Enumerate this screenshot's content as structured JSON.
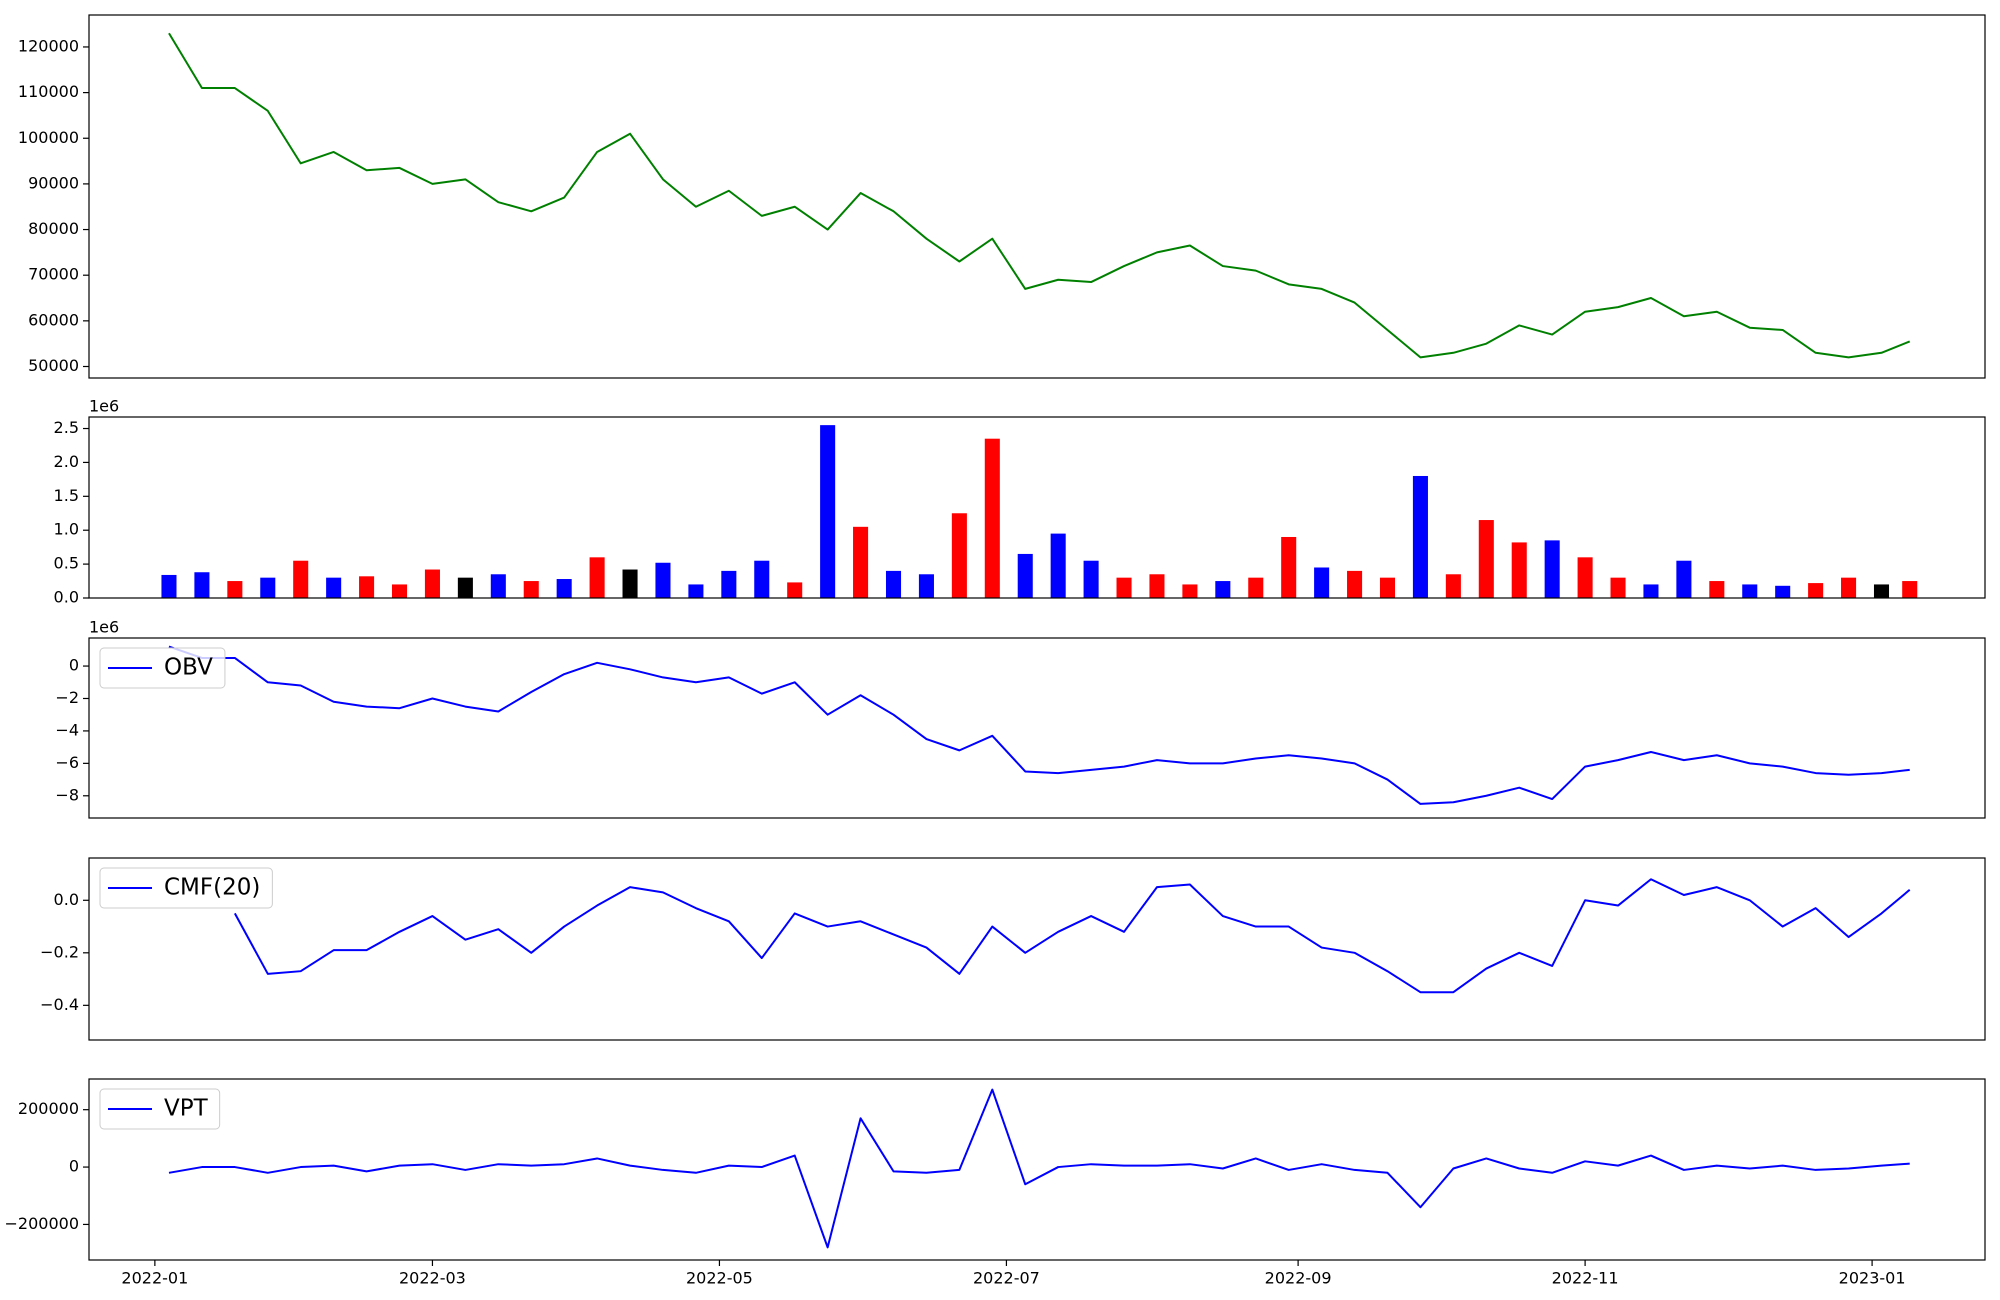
{
  "chart_data": [
    {
      "type": "line",
      "color": "#008000",
      "x": [
        "2022-01-04",
        "2022-01-11",
        "2022-01-18",
        "2022-01-25",
        "2022-02-01",
        "2022-02-08",
        "2022-02-15",
        "2022-02-22",
        "2022-03-01",
        "2022-03-08",
        "2022-03-15",
        "2022-03-22",
        "2022-03-29",
        "2022-04-05",
        "2022-04-12",
        "2022-04-19",
        "2022-04-26",
        "2022-05-03",
        "2022-05-10",
        "2022-05-17",
        "2022-05-24",
        "2022-05-31",
        "2022-06-07",
        "2022-06-14",
        "2022-06-21",
        "2022-06-28",
        "2022-07-05",
        "2022-07-12",
        "2022-07-19",
        "2022-07-26",
        "2022-08-02",
        "2022-08-09",
        "2022-08-16",
        "2022-08-23",
        "2022-08-30",
        "2022-09-06",
        "2022-09-13",
        "2022-09-20",
        "2022-09-27",
        "2022-10-04",
        "2022-10-11",
        "2022-10-18",
        "2022-10-25",
        "2022-11-01",
        "2022-11-08",
        "2022-11-15",
        "2022-11-22",
        "2022-11-29",
        "2022-12-06",
        "2022-12-13",
        "2022-12-20",
        "2022-12-27",
        "2023-01-03",
        "2023-01-09"
      ],
      "values": [
        123000,
        111000,
        111000,
        106000,
        94500,
        97000,
        93000,
        93500,
        90000,
        91000,
        86000,
        84000,
        87000,
        97000,
        101000,
        91000,
        85000,
        88500,
        83000,
        85000,
        80000,
        88000,
        84000,
        78000,
        73000,
        78000,
        67000,
        69000,
        68500,
        72000,
        75000,
        76500,
        72000,
        71000,
        68000,
        67000,
        64000,
        58000,
        52000,
        53000,
        55000,
        59000,
        57000,
        62000,
        63000,
        65000,
        61000,
        62000,
        58500,
        58000,
        53000,
        52000,
        53000,
        55500
      ],
      "xlim": [
        "2021-12-18",
        "2023-01-25"
      ],
      "ylim": [
        47480,
        127000
      ],
      "yticks": [
        50000,
        60000,
        70000,
        80000,
        90000,
        100000,
        110000,
        120000
      ]
    },
    {
      "type": "bar",
      "offset": "1e6",
      "x": [
        "2022-01-04",
        "2022-01-11",
        "2022-01-18",
        "2022-01-25",
        "2022-02-01",
        "2022-02-08",
        "2022-02-15",
        "2022-02-22",
        "2022-03-01",
        "2022-03-08",
        "2022-03-15",
        "2022-03-22",
        "2022-03-29",
        "2022-04-05",
        "2022-04-12",
        "2022-04-19",
        "2022-04-26",
        "2022-05-03",
        "2022-05-10",
        "2022-05-17",
        "2022-05-24",
        "2022-05-31",
        "2022-06-07",
        "2022-06-14",
        "2022-06-21",
        "2022-06-28",
        "2022-07-05",
        "2022-07-12",
        "2022-07-19",
        "2022-07-26",
        "2022-08-02",
        "2022-08-09",
        "2022-08-16",
        "2022-08-23",
        "2022-08-30",
        "2022-09-06",
        "2022-09-13",
        "2022-09-20",
        "2022-09-27",
        "2022-10-04",
        "2022-10-11",
        "2022-10-18",
        "2022-10-25",
        "2022-11-01",
        "2022-11-08",
        "2022-11-15",
        "2022-11-22",
        "2022-11-29",
        "2022-12-06",
        "2022-12-13",
        "2022-12-20",
        "2022-12-27",
        "2023-01-03",
        "2023-01-09"
      ],
      "values": [
        340000,
        380000,
        250000,
        300000,
        550000,
        300000,
        320000,
        200000,
        420000,
        300000,
        350000,
        250000,
        280000,
        600000,
        420000,
        520000,
        200000,
        400000,
        550000,
        230000,
        2550000,
        1050000,
        400000,
        350000,
        1250000,
        2350000,
        650000,
        950000,
        550000,
        300000,
        350000,
        200000,
        250000,
        300000,
        900000,
        450000,
        400000,
        300000,
        1800000,
        350000,
        1150000,
        820000,
        850000,
        600000,
        300000,
        200000,
        550000,
        250000,
        200000,
        180000,
        220000,
        300000,
        200000,
        250000
      ],
      "colors": [
        "blue",
        "blue",
        "red",
        "blue",
        "red",
        "blue",
        "red",
        "red",
        "red",
        "black",
        "blue",
        "red",
        "blue",
        "red",
        "black",
        "blue",
        "blue",
        "blue",
        "blue",
        "red",
        "blue",
        "red",
        "blue",
        "blue",
        "red",
        "red",
        "blue",
        "blue",
        "blue",
        "red",
        "red",
        "red",
        "blue",
        "red",
        "red",
        "blue",
        "red",
        "red",
        "blue",
        "red",
        "red",
        "red",
        "blue",
        "red",
        "red",
        "blue",
        "blue",
        "red",
        "blue",
        "blue",
        "red",
        "red",
        "black",
        "red"
      ],
      "xlim": [
        "2021-12-18",
        "2023-01-25"
      ],
      "ylim": [
        0,
        2670000
      ],
      "yticks": [
        {
          "value": 0,
          "label": "0.0"
        },
        {
          "value": 500000,
          "label": "0.5"
        },
        {
          "value": 1000000,
          "label": "1.0"
        },
        {
          "value": 1500000,
          "label": "1.5"
        },
        {
          "value": 2000000,
          "label": "2.0"
        },
        {
          "value": 2500000,
          "label": "2.5"
        }
      ]
    },
    {
      "type": "line",
      "offset": "1e6",
      "legend": "upper left",
      "x": [
        "2022-01-04",
        "2022-01-11",
        "2022-01-18",
        "2022-01-25",
        "2022-02-01",
        "2022-02-08",
        "2022-02-15",
        "2022-02-22",
        "2022-03-01",
        "2022-03-08",
        "2022-03-15",
        "2022-03-22",
        "2022-03-29",
        "2022-04-05",
        "2022-04-12",
        "2022-04-19",
        "2022-04-26",
        "2022-05-03",
        "2022-05-10",
        "2022-05-17",
        "2022-05-24",
        "2022-05-31",
        "2022-06-07",
        "2022-06-14",
        "2022-06-21",
        "2022-06-28",
        "2022-07-05",
        "2022-07-12",
        "2022-07-19",
        "2022-07-26",
        "2022-08-02",
        "2022-08-09",
        "2022-08-16",
        "2022-08-23",
        "2022-08-30",
        "2022-09-06",
        "2022-09-13",
        "2022-09-20",
        "2022-09-27",
        "2022-10-04",
        "2022-10-11",
        "2022-10-18",
        "2022-10-25",
        "2022-11-01",
        "2022-11-08",
        "2022-11-15",
        "2022-11-22",
        "2022-11-29",
        "2022-12-06",
        "2022-12-13",
        "2022-12-20",
        "2022-12-27",
        "2023-01-03",
        "2023-01-09"
      ],
      "series": [
        {
          "name": "OBV",
          "color": "#0000ff",
          "values": [
            1200000,
            500000,
            500000,
            -1000000,
            -1200000,
            -2200000,
            -2500000,
            -2600000,
            -2000000,
            -2500000,
            -2800000,
            -1600000,
            -500000,
            200000,
            -200000,
            -700000,
            -1000000,
            -700000,
            -1700000,
            -1000000,
            -3000000,
            -1800000,
            -3000000,
            -4500000,
            -5200000,
            -4300000,
            -6500000,
            -6600000,
            -6400000,
            -6200000,
            -5800000,
            -6000000,
            -6000000,
            -5700000,
            -5500000,
            -5700000,
            -6000000,
            -7000000,
            -8500000,
            -8400000,
            -8000000,
            -7500000,
            -8200000,
            -6200000,
            -5800000,
            -5300000,
            -5800000,
            -5500000,
            -6000000,
            -6200000,
            -6600000,
            -6700000,
            -6600000,
            -6400000
          ]
        }
      ],
      "xlim": [
        "2021-12-18",
        "2023-01-25"
      ],
      "ylim": [
        -9370000,
        1730000
      ],
      "yticks": [
        0,
        {
          "value": -2000000,
          "label": "−2"
        },
        {
          "value": -4000000,
          "label": "−4"
        },
        {
          "value": -6000000,
          "label": "−6"
        },
        {
          "value": -8000000,
          "label": "−8"
        }
      ]
    },
    {
      "type": "line",
      "legend": "upper left",
      "x": [
        "2022-01-04",
        "2022-01-11",
        "2022-01-18",
        "2022-01-25",
        "2022-02-01",
        "2022-02-08",
        "2022-02-15",
        "2022-02-22",
        "2022-03-01",
        "2022-03-08",
        "2022-03-15",
        "2022-03-22",
        "2022-03-29",
        "2022-04-05",
        "2022-04-12",
        "2022-04-19",
        "2022-04-26",
        "2022-05-03",
        "2022-05-10",
        "2022-05-17",
        "2022-05-24",
        "2022-05-31",
        "2022-06-07",
        "2022-06-14",
        "2022-06-21",
        "2022-06-28",
        "2022-07-05",
        "2022-07-12",
        "2022-07-19",
        "2022-07-26",
        "2022-08-02",
        "2022-08-09",
        "2022-08-16",
        "2022-08-23",
        "2022-08-30",
        "2022-09-06",
        "2022-09-13",
        "2022-09-20",
        "2022-09-27",
        "2022-10-04",
        "2022-10-11",
        "2022-10-18",
        "2022-10-25",
        "2022-11-01",
        "2022-11-08",
        "2022-11-15",
        "2022-11-22",
        "2022-11-29",
        "2022-12-06",
        "2022-12-13",
        "2022-12-20",
        "2022-12-27",
        "2023-01-03",
        "2023-01-09"
      ],
      "series": [
        {
          "name": "CMF(20)",
          "color": "#0000ff",
          "values": [
            null,
            null,
            -0.05,
            -0.28,
            -0.27,
            -0.19,
            -0.19,
            -0.12,
            -0.06,
            -0.15,
            -0.11,
            -0.2,
            -0.1,
            -0.02,
            0.05,
            0.03,
            -0.03,
            -0.08,
            -0.22,
            -0.05,
            -0.1,
            -0.08,
            -0.13,
            -0.18,
            -0.28,
            -0.1,
            -0.2,
            -0.12,
            -0.06,
            -0.12,
            0.05,
            0.06,
            -0.06,
            -0.1,
            -0.1,
            -0.18,
            -0.2,
            -0.27,
            -0.35,
            -0.35,
            -0.26,
            -0.2,
            -0.25,
            0.0,
            -0.02,
            0.08,
            0.02,
            0.05,
            0.0,
            -0.1,
            -0.03,
            -0.14,
            -0.05,
            0.04
          ]
        }
      ],
      "xlim": [
        "2021-12-18",
        "2023-01-25"
      ],
      "ylim": [
        -0.532,
        0.161
      ],
      "yticks": [
        {
          "value": 0,
          "label": "0.0"
        },
        {
          "value": -0.2,
          "label": "−0.2"
        },
        {
          "value": -0.4,
          "label": "−0.4"
        }
      ]
    },
    {
      "type": "line",
      "legend": "upper left",
      "x": [
        "2022-01-04",
        "2022-01-11",
        "2022-01-18",
        "2022-01-25",
        "2022-02-01",
        "2022-02-08",
        "2022-02-15",
        "2022-02-22",
        "2022-03-01",
        "2022-03-08",
        "2022-03-15",
        "2022-03-22",
        "2022-03-29",
        "2022-04-05",
        "2022-04-12",
        "2022-04-19",
        "2022-04-26",
        "2022-05-03",
        "2022-05-10",
        "2022-05-17",
        "2022-05-24",
        "2022-05-31",
        "2022-06-07",
        "2022-06-14",
        "2022-06-21",
        "2022-06-28",
        "2022-07-05",
        "2022-07-12",
        "2022-07-19",
        "2022-07-26",
        "2022-08-02",
        "2022-08-09",
        "2022-08-16",
        "2022-08-23",
        "2022-08-30",
        "2022-09-06",
        "2022-09-13",
        "2022-09-20",
        "2022-09-27",
        "2022-10-04",
        "2022-10-11",
        "2022-10-18",
        "2022-10-25",
        "2022-11-01",
        "2022-11-08",
        "2022-11-15",
        "2022-11-22",
        "2022-11-29",
        "2022-12-06",
        "2022-12-13",
        "2022-12-20",
        "2022-12-27",
        "2023-01-03",
        "2023-01-09"
      ],
      "series": [
        {
          "name": "VPT",
          "color": "#0000ff",
          "values": [
            -20000,
            0,
            0,
            -20000,
            0,
            5000,
            -15000,
            5000,
            10000,
            -10000,
            10000,
            5000,
            10000,
            30000,
            5000,
            -10000,
            -20000,
            5000,
            0,
            40000,
            -280000,
            170000,
            -15000,
            -20000,
            -10000,
            270000,
            -60000,
            0,
            10000,
            5000,
            5000,
            10000,
            -5000,
            30000,
            -10000,
            10000,
            -10000,
            -20000,
            -140000,
            -5000,
            30000,
            -5000,
            -20000,
            20000,
            5000,
            40000,
            -10000,
            5000,
            -5000,
            5000,
            -10000,
            -5000,
            5000,
            12000
          ]
        }
      ],
      "xlim": [
        "2021-12-18",
        "2023-01-25"
      ],
      "ylim": [
        -324000,
        307000
      ],
      "yticks": [
        200000,
        0,
        {
          "value": -200000,
          "label": "−200000"
        }
      ],
      "xticks": [
        {
          "value": "2022-01-01",
          "label": "2022-01"
        },
        {
          "value": "2022-03-01",
          "label": "2022-03"
        },
        {
          "value": "2022-05-01",
          "label": "2022-05"
        },
        {
          "value": "2022-07-01",
          "label": "2022-07"
        },
        {
          "value": "2022-09-01",
          "label": "2022-09"
        },
        {
          "value": "2022-11-01",
          "label": "2022-11"
        },
        {
          "value": "2023-01-01",
          "label": "2023-01"
        }
      ]
    }
  ]
}
